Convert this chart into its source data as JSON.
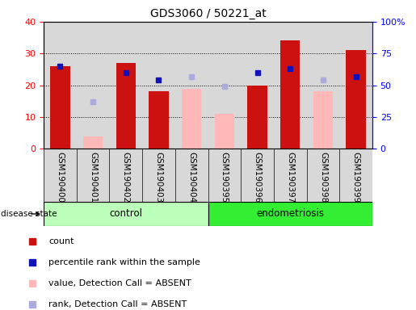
{
  "title": "GDS3060 / 50221_at",
  "samples": [
    "GSM190400",
    "GSM190401",
    "GSM190402",
    "GSM190403",
    "GSM190404",
    "GSM190395",
    "GSM190396",
    "GSM190397",
    "GSM190398",
    "GSM190399"
  ],
  "count_values": [
    26,
    null,
    27,
    18,
    null,
    null,
    20,
    34,
    null,
    31
  ],
  "count_absent_values": [
    null,
    4,
    null,
    null,
    19,
    11,
    null,
    null,
    18,
    null
  ],
  "percentile_rank": [
    65,
    null,
    60,
    54,
    null,
    null,
    60,
    63,
    null,
    57
  ],
  "percentile_rank_absent": [
    null,
    37,
    null,
    null,
    57,
    49,
    null,
    null,
    54,
    null
  ],
  "ylim_left": [
    0,
    40
  ],
  "yticks_left": [
    0,
    10,
    20,
    30,
    40
  ],
  "ytick_labels_right": [
    "0",
    "25",
    "50",
    "75",
    "100%"
  ],
  "bar_color_red": "#cc1111",
  "bar_color_pink": "#ffb8b8",
  "dot_color_blue": "#1111bb",
  "dot_color_lightblue": "#aaaadd",
  "control_color": "#bbffbb",
  "endometriosis_color": "#33ee33",
  "legend_items": [
    {
      "color": "#cc1111",
      "label": "count"
    },
    {
      "color": "#1111bb",
      "label": "percentile rank within the sample"
    },
    {
      "color": "#ffb8b8",
      "label": "value, Detection Call = ABSENT"
    },
    {
      "color": "#aaaadd",
      "label": "rank, Detection Call = ABSENT"
    }
  ]
}
